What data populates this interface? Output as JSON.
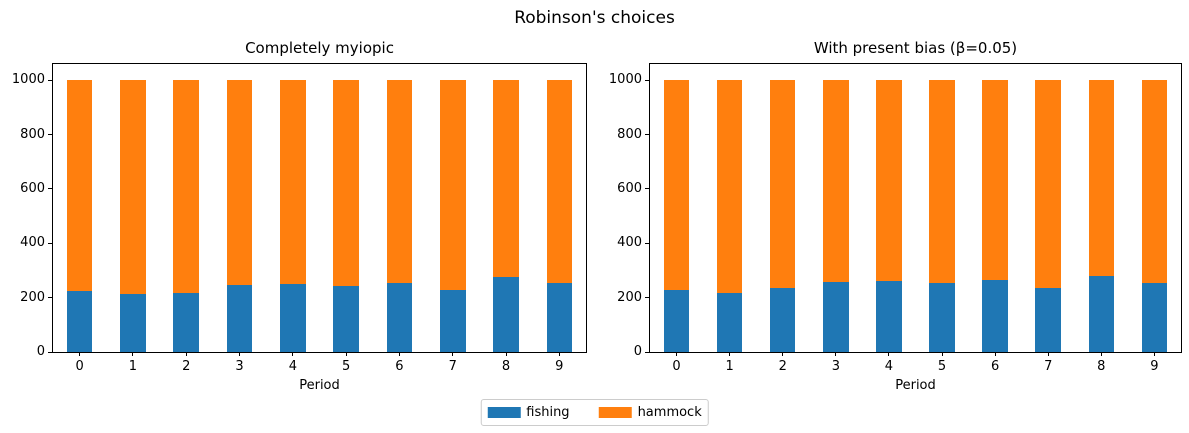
{
  "figure": {
    "suptitle": "Robinson's choices",
    "background": "#ffffff"
  },
  "legend": {
    "position": "lower center, shared",
    "items": [
      {
        "label": "fishing",
        "color": "#1f77b4"
      },
      {
        "label": "hammock",
        "color": "#ff7f0e"
      }
    ]
  },
  "chart_data": [
    {
      "type": "bar",
      "stacked": true,
      "title": "Completely myiopic",
      "xlabel": "Period",
      "ylabel": "",
      "categories": [
        "0",
        "1",
        "2",
        "3",
        "4",
        "5",
        "6",
        "7",
        "8",
        "9"
      ],
      "series": [
        {
          "name": "fishing",
          "color": "#1f77b4",
          "values": [
            223,
            214,
            218,
            247,
            249,
            244,
            255,
            229,
            275,
            253
          ]
        },
        {
          "name": "hammock",
          "color": "#ff7f0e",
          "values": [
            777,
            786,
            782,
            753,
            751,
            756,
            745,
            771,
            725,
            747
          ]
        }
      ],
      "stack_total": 1000,
      "yticks": [
        0,
        200,
        400,
        600,
        800,
        1000
      ],
      "ylim": [
        0,
        1060
      ],
      "grid": false
    },
    {
      "type": "bar",
      "stacked": true,
      "title": "With present bias (β=0.05)",
      "xlabel": "Period",
      "ylabel": "",
      "categories": [
        "0",
        "1",
        "2",
        "3",
        "4",
        "5",
        "6",
        "7",
        "8",
        "9"
      ],
      "series": [
        {
          "name": "fishing",
          "color": "#1f77b4",
          "values": [
            229,
            218,
            234,
            256,
            261,
            253,
            264,
            234,
            278,
            255
          ]
        },
        {
          "name": "hammock",
          "color": "#ff7f0e",
          "values": [
            771,
            782,
            766,
            744,
            739,
            747,
            736,
            766,
            722,
            745
          ]
        }
      ],
      "stack_total": 1000,
      "yticks": [
        0,
        200,
        400,
        600,
        800,
        1000
      ],
      "ylim": [
        0,
        1060
      ],
      "grid": false
    }
  ]
}
